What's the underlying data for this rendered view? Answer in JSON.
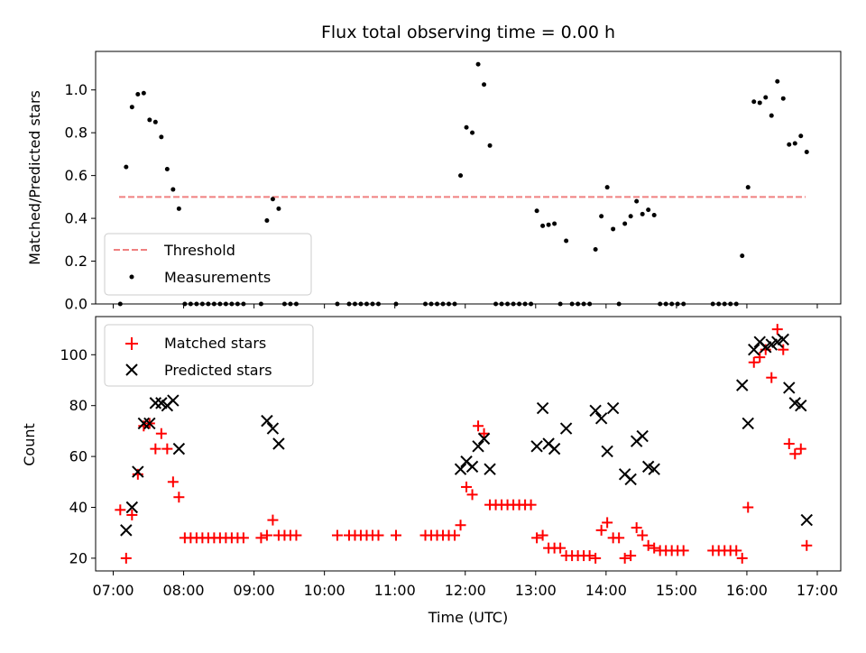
{
  "chart_data": [
    {
      "type": "scatter",
      "title": "Flux total observing time = 0.00 h",
      "xlabel": "",
      "ylabel": "Matched/Predicted stars",
      "xlim": [
        "06:45",
        "17:20"
      ],
      "ylim": [
        0,
        1.18
      ],
      "yticks": [
        "0.0",
        "0.2",
        "0.4",
        "0.6",
        "0.8",
        "1.0"
      ],
      "grid": false,
      "legend_position": "lower-left",
      "threshold": {
        "name": "Threshold",
        "value": 0.5,
        "x_range": [
          "07:05",
          "16:50"
        ],
        "color": "#f08080",
        "style": "dashed"
      },
      "series": [
        {
          "name": "Measurements",
          "color": "#000000",
          "marker": "dot",
          "points": [
            [
              "07:06",
              0.0
            ],
            [
              "07:11",
              0.64
            ],
            [
              "07:16",
              0.92
            ],
            [
              "07:21",
              0.98
            ],
            [
              "07:26",
              0.985
            ],
            [
              "07:31",
              0.86
            ],
            [
              "07:36",
              0.85
            ],
            [
              "07:41",
              0.78
            ],
            [
              "07:46",
              0.63
            ],
            [
              "07:51",
              0.535
            ],
            [
              "07:56",
              0.445
            ],
            [
              "08:01",
              0.0
            ],
            [
              "08:06",
              0.0
            ],
            [
              "08:11",
              0.0
            ],
            [
              "08:16",
              0.0
            ],
            [
              "08:21",
              0.0
            ],
            [
              "08:26",
              0.0
            ],
            [
              "08:31",
              0.0
            ],
            [
              "08:36",
              0.0
            ],
            [
              "08:41",
              0.0
            ],
            [
              "08:46",
              0.0
            ],
            [
              "08:51",
              0.0
            ],
            [
              "09:06",
              0.0
            ],
            [
              "09:11",
              0.39
            ],
            [
              "09:16",
              0.49
            ],
            [
              "09:21",
              0.445
            ],
            [
              "09:26",
              0.0
            ],
            [
              "09:31",
              0.0
            ],
            [
              "09:36",
              0.0
            ],
            [
              "10:11",
              0.0
            ],
            [
              "10:21",
              0.0
            ],
            [
              "10:26",
              0.0
            ],
            [
              "10:31",
              0.0
            ],
            [
              "10:36",
              0.0
            ],
            [
              "10:41",
              0.0
            ],
            [
              "10:46",
              0.0
            ],
            [
              "11:01",
              0.0
            ],
            [
              "11:26",
              0.0
            ],
            [
              "11:31",
              0.0
            ],
            [
              "11:36",
              0.0
            ],
            [
              "11:41",
              0.0
            ],
            [
              "11:46",
              0.0
            ],
            [
              "11:51",
              0.0
            ],
            [
              "11:56",
              0.6
            ],
            [
              "12:01",
              0.825
            ],
            [
              "12:06",
              0.8
            ],
            [
              "12:11",
              1.12
            ],
            [
              "12:16",
              1.025
            ],
            [
              "12:21",
              0.74
            ],
            [
              "12:26",
              0.0
            ],
            [
              "12:31",
              0.0
            ],
            [
              "12:36",
              0.0
            ],
            [
              "12:41",
              0.0
            ],
            [
              "12:46",
              0.0
            ],
            [
              "12:51",
              0.0
            ],
            [
              "12:56",
              0.0
            ],
            [
              "13:01",
              0.435
            ],
            [
              "13:06",
              0.365
            ],
            [
              "13:11",
              0.37
            ],
            [
              "13:16",
              0.375
            ],
            [
              "13:21",
              0.0
            ],
            [
              "13:26",
              0.295
            ],
            [
              "13:31",
              0.0
            ],
            [
              "13:36",
              0.0
            ],
            [
              "13:41",
              0.0
            ],
            [
              "13:46",
              0.0
            ],
            [
              "13:51",
              0.255
            ],
            [
              "13:56",
              0.41
            ],
            [
              "14:01",
              0.545
            ],
            [
              "14:06",
              0.35
            ],
            [
              "14:11",
              0.0
            ],
            [
              "14:16",
              0.375
            ],
            [
              "14:21",
              0.41
            ],
            [
              "14:26",
              0.48
            ],
            [
              "14:31",
              0.42
            ],
            [
              "14:36",
              0.44
            ],
            [
              "14:41",
              0.415
            ],
            [
              "14:46",
              0.0
            ],
            [
              "14:51",
              0.0
            ],
            [
              "14:56",
              0.0
            ],
            [
              "15:01",
              0.0
            ],
            [
              "15:06",
              0.0
            ],
            [
              "15:31",
              0.0
            ],
            [
              "15:36",
              0.0
            ],
            [
              "15:41",
              0.0
            ],
            [
              "15:46",
              0.0
            ],
            [
              "15:51",
              0.0
            ],
            [
              "15:56",
              0.225
            ],
            [
              "16:01",
              0.545
            ],
            [
              "16:06",
              0.945
            ],
            [
              "16:11",
              0.94
            ],
            [
              "16:16",
              0.965
            ],
            [
              "16:21",
              0.88
            ],
            [
              "16:26",
              1.04
            ],
            [
              "16:31",
              0.96
            ],
            [
              "16:36",
              0.745
            ],
            [
              "16:41",
              0.75
            ],
            [
              "16:46",
              0.785
            ],
            [
              "16:51",
              0.71
            ]
          ]
        }
      ]
    },
    {
      "type": "scatter",
      "title": "",
      "xlabel": "Time (UTC)",
      "ylabel": "Count",
      "xlim": [
        "06:45",
        "17:20"
      ],
      "ylim": [
        15,
        115
      ],
      "xticks": [
        "07:00",
        "08:00",
        "09:00",
        "10:00",
        "11:00",
        "12:00",
        "13:00",
        "14:00",
        "15:00",
        "16:00",
        "17:00"
      ],
      "yticks": [
        "20",
        "40",
        "60",
        "80",
        "100"
      ],
      "grid": false,
      "legend_position": "upper-left",
      "series": [
        {
          "name": "Matched stars",
          "color": "#ff0000",
          "marker": "plus",
          "points": [
            [
              "07:06",
              39
            ],
            [
              "07:11",
              20
            ],
            [
              "07:16",
              37
            ],
            [
              "07:21",
              53
            ],
            [
              "07:26",
              72
            ],
            [
              "07:31",
              73
            ],
            [
              "07:36",
              63
            ],
            [
              "07:41",
              69
            ],
            [
              "07:46",
              63
            ],
            [
              "07:51",
              50
            ],
            [
              "07:56",
              44
            ],
            [
              "08:01",
              28
            ],
            [
              "08:06",
              28
            ],
            [
              "08:11",
              28
            ],
            [
              "08:16",
              28
            ],
            [
              "08:21",
              28
            ],
            [
              "08:26",
              28
            ],
            [
              "08:31",
              28
            ],
            [
              "08:36",
              28
            ],
            [
              "08:41",
              28
            ],
            [
              "08:46",
              28
            ],
            [
              "08:51",
              28
            ],
            [
              "09:06",
              28
            ],
            [
              "09:11",
              29
            ],
            [
              "09:16",
              35
            ],
            [
              "09:21",
              29
            ],
            [
              "09:26",
              29
            ],
            [
              "09:31",
              29
            ],
            [
              "09:36",
              29
            ],
            [
              "10:11",
              29
            ],
            [
              "10:21",
              29
            ],
            [
              "10:26",
              29
            ],
            [
              "10:31",
              29
            ],
            [
              "10:36",
              29
            ],
            [
              "10:41",
              29
            ],
            [
              "10:46",
              29
            ],
            [
              "11:01",
              29
            ],
            [
              "11:26",
              29
            ],
            [
              "11:31",
              29
            ],
            [
              "11:36",
              29
            ],
            [
              "11:41",
              29
            ],
            [
              "11:46",
              29
            ],
            [
              "11:51",
              29
            ],
            [
              "11:56",
              33
            ],
            [
              "12:01",
              48
            ],
            [
              "12:06",
              45
            ],
            [
              "12:11",
              72
            ],
            [
              "12:16",
              69
            ],
            [
              "12:21",
              41
            ],
            [
              "12:26",
              41
            ],
            [
              "12:31",
              41
            ],
            [
              "12:36",
              41
            ],
            [
              "12:41",
              41
            ],
            [
              "12:46",
              41
            ],
            [
              "12:51",
              41
            ],
            [
              "12:56",
              41
            ],
            [
              "13:01",
              28
            ],
            [
              "13:06",
              29
            ],
            [
              "13:11",
              24
            ],
            [
              "13:16",
              24
            ],
            [
              "13:21",
              24
            ],
            [
              "13:26",
              21
            ],
            [
              "13:31",
              21
            ],
            [
              "13:36",
              21
            ],
            [
              "13:41",
              21
            ],
            [
              "13:46",
              21
            ],
            [
              "13:51",
              20
            ],
            [
              "13:56",
              31
            ],
            [
              "14:01",
              34
            ],
            [
              "14:06",
              28
            ],
            [
              "14:11",
              28
            ],
            [
              "14:16",
              20
            ],
            [
              "14:21",
              21
            ],
            [
              "14:26",
              32
            ],
            [
              "14:31",
              29
            ],
            [
              "14:36",
              25
            ],
            [
              "14:41",
              24
            ],
            [
              "14:46",
              23
            ],
            [
              "14:51",
              23
            ],
            [
              "14:56",
              23
            ],
            [
              "15:01",
              23
            ],
            [
              "15:06",
              23
            ],
            [
              "15:31",
              23
            ],
            [
              "15:36",
              23
            ],
            [
              "15:41",
              23
            ],
            [
              "15:46",
              23
            ],
            [
              "15:51",
              23
            ],
            [
              "15:56",
              20
            ],
            [
              "16:01",
              40
            ],
            [
              "16:06",
              97
            ],
            [
              "16:11",
              99
            ],
            [
              "16:16",
              102
            ],
            [
              "16:21",
              91
            ],
            [
              "16:26",
              110
            ],
            [
              "16:31",
              102
            ],
            [
              "16:36",
              65
            ],
            [
              "16:41",
              61
            ],
            [
              "16:46",
              63
            ],
            [
              "16:51",
              25
            ]
          ]
        },
        {
          "name": "Predicted stars",
          "color": "#000000",
          "marker": "x",
          "points": [
            [
              "07:11",
              31
            ],
            [
              "07:16",
              40
            ],
            [
              "07:21",
              54
            ],
            [
              "07:26",
              73
            ],
            [
              "07:31",
              73
            ],
            [
              "07:36",
              81
            ],
            [
              "07:41",
              81
            ],
            [
              "07:46",
              80
            ],
            [
              "07:51",
              82
            ],
            [
              "07:56",
              63
            ],
            [
              "09:11",
              74
            ],
            [
              "09:16",
              71
            ],
            [
              "09:21",
              65
            ],
            [
              "11:56",
              55
            ],
            [
              "12:01",
              58
            ],
            [
              "12:06",
              56
            ],
            [
              "12:11",
              64
            ],
            [
              "12:16",
              67
            ],
            [
              "12:21",
              55
            ],
            [
              "13:01",
              64
            ],
            [
              "13:06",
              79
            ],
            [
              "13:11",
              65
            ],
            [
              "13:16",
              63
            ],
            [
              "13:26",
              71
            ],
            [
              "13:51",
              78
            ],
            [
              "13:56",
              75
            ],
            [
              "14:01",
              62
            ],
            [
              "14:06",
              79
            ],
            [
              "14:16",
              53
            ],
            [
              "14:21",
              51
            ],
            [
              "14:26",
              66
            ],
            [
              "14:31",
              68
            ],
            [
              "14:36",
              56
            ],
            [
              "14:41",
              55
            ],
            [
              "15:56",
              88
            ],
            [
              "16:01",
              73
            ],
            [
              "16:06",
              102
            ],
            [
              "16:11",
              105
            ],
            [
              "16:16",
              103
            ],
            [
              "16:21",
              104
            ],
            [
              "16:26",
              105
            ],
            [
              "16:31",
              106
            ],
            [
              "16:36",
              87
            ],
            [
              "16:41",
              81
            ],
            [
              "16:46",
              80
            ],
            [
              "16:51",
              35
            ]
          ]
        }
      ]
    }
  ]
}
